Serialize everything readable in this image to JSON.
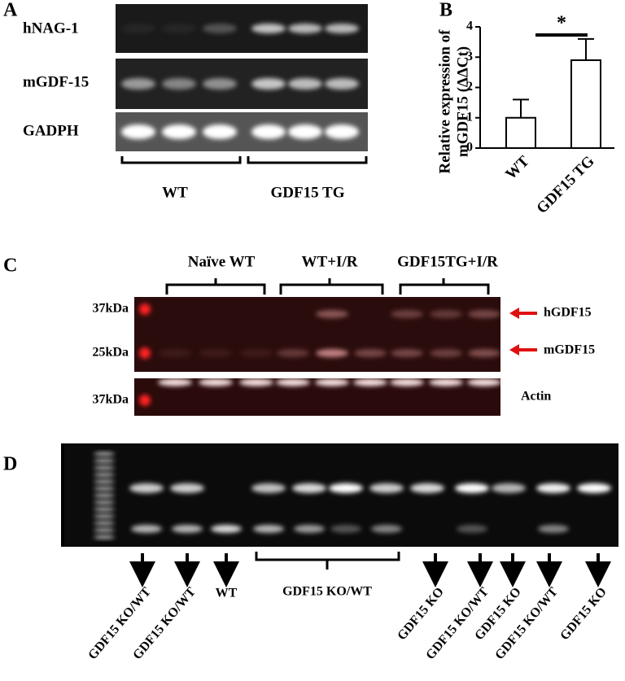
{
  "panel_a": {
    "label": "A",
    "rows": [
      "hNAG-1",
      "mGDF-15",
      "GADPH"
    ],
    "groups": [
      "WT",
      "GDF15 TG"
    ]
  },
  "chart_data": {
    "type": "bar",
    "panel_label": "B",
    "ylabel": [
      "Relative expression of",
      "mGDF15 (ΔΔCt)"
    ],
    "categories": [
      "WT",
      "GDF15  TG"
    ],
    "values": [
      1,
      2.9
    ],
    "errors": [
      0.6,
      0.7
    ],
    "color": "#ffffff",
    "ylim": [
      0,
      4
    ],
    "yticks": [
      0,
      1,
      2,
      3,
      4
    ],
    "annotation": "*"
  },
  "panel_c": {
    "label": "C",
    "groups": [
      "Naïve WT",
      "WT+I/R",
      "GDF15TG+I/R"
    ],
    "markers": [
      "37kDa",
      "25kDa",
      "37kDa"
    ],
    "bands": [
      "hGDF15",
      "mGDF15",
      "Actin"
    ]
  },
  "panel_d": {
    "label": "D",
    "lanes": [
      "GDF15 KO/WT",
      "GDF15 KO/WT",
      "WT",
      "GDF15 KO/WT",
      "GDF15 KO",
      "GDF15 KO/WT",
      "GDF15 KO",
      "GDF15 KO/WT",
      "GDF15 KO"
    ]
  }
}
